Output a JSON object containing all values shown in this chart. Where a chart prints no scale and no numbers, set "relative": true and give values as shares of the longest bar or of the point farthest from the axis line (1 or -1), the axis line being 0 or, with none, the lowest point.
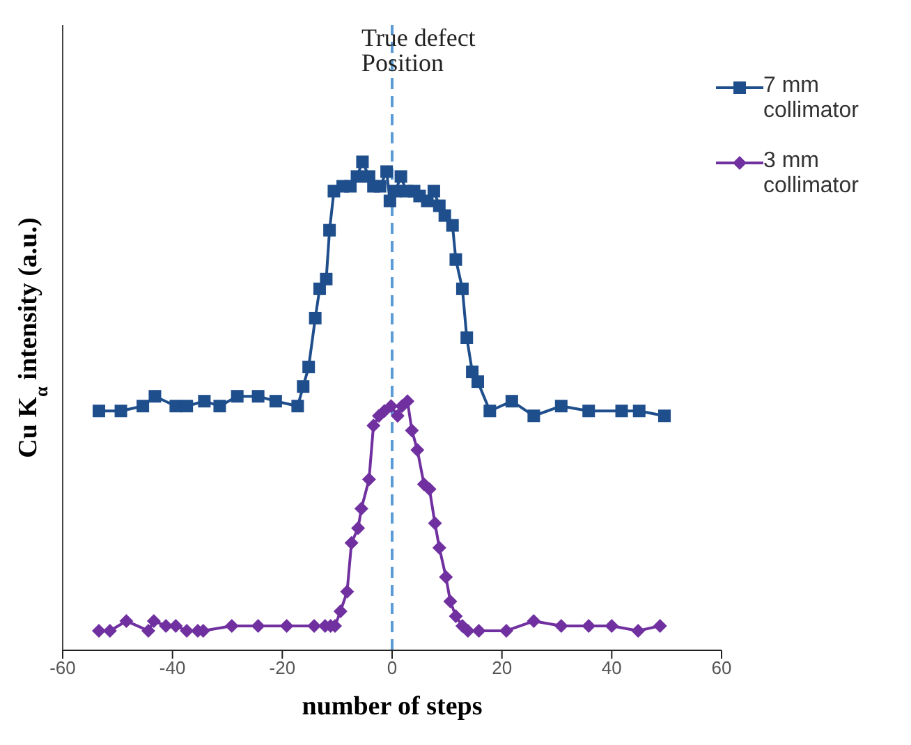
{
  "chart_data": {
    "type": "line",
    "relative": true,
    "xlabel": "number of steps",
    "ylabel": "Cu K$_{α}$ intensity (a.u.)",
    "xlim": [
      -60,
      60
    ],
    "xticks": [
      -60,
      -40,
      -20,
      0,
      20,
      40,
      60
    ],
    "legend": "top right",
    "grid": false,
    "line_style": "solid",
    "ref_lines": [
      {
        "axis": "x",
        "value": 0,
        "label": "True defect Position",
        "color": "#5b9bd5",
        "line_style": "dashed"
      }
    ],
    "series": [
      {
        "name": "7 mm collimator",
        "color": "#1f4e8c",
        "marker": "square",
        "x": [
          -53.4,
          -49.4,
          -45.4,
          -43.2,
          -39.4,
          -37.4,
          -34.2,
          -31.4,
          -28.2,
          -24.4,
          -21.2,
          -17.2,
          -16.2,
          -15.2,
          -14,
          -13.2,
          -12,
          -11.4,
          -10.6,
          -9,
          -7.6,
          -6.4,
          -5.4,
          -4.2,
          -3.4,
          -2.2,
          -1,
          -0.4,
          0.6,
          1.6,
          2.6,
          4,
          5,
          6.4,
          7.6,
          8.6,
          9.6,
          11,
          11.6,
          12.8,
          13.6,
          14.6,
          15.6,
          17.8,
          21.8,
          25.8,
          30.8,
          35.8,
          41.8,
          45,
          49.6
        ],
        "values": [
          0.49,
          0.49,
          0.5,
          0.52,
          0.5,
          0.5,
          0.51,
          0.5,
          0.52,
          0.52,
          0.51,
          0.5,
          0.54,
          0.58,
          0.68,
          0.74,
          0.76,
          0.86,
          0.94,
          0.95,
          0.95,
          0.97,
          1,
          0.97,
          0.95,
          0.95,
          0.98,
          0.92,
          0.94,
          0.97,
          0.94,
          0.94,
          0.93,
          0.92,
          0.94,
          0.91,
          0.89,
          0.87,
          0.8,
          0.74,
          0.64,
          0.57,
          0.55,
          0.49,
          0.51,
          0.48,
          0.5,
          0.49,
          0.49,
          0.49,
          0.48
        ]
      },
      {
        "name": "3 mm collimator",
        "color": "#7030a0",
        "marker": "diamond",
        "x": [
          -53.4,
          -51.4,
          -48.4,
          -44.4,
          -43.4,
          -41.2,
          -39.4,
          -37.4,
          -35.4,
          -34.4,
          -29.2,
          -24.4,
          -19.2,
          -14.2,
          -12.2,
          -11.2,
          -10.4,
          -9.4,
          -8.2,
          -7.4,
          -6.2,
          -5.6,
          -4.2,
          -3.4,
          -2.4,
          -1.4,
          -0.2,
          1,
          1.8,
          2.8,
          3.6,
          4.6,
          5.8,
          6.8,
          7.8,
          8.6,
          9.8,
          10.6,
          11.6,
          12.8,
          13.8,
          15.8,
          20.8,
          25.8,
          30.8,
          35.8,
          40,
          44.8,
          48.8
        ],
        "values": [
          0.04,
          0.04,
          0.06,
          0.04,
          0.06,
          0.05,
          0.05,
          0.04,
          0.04,
          0.04,
          0.05,
          0.05,
          0.05,
          0.05,
          0.05,
          0.05,
          0.05,
          0.08,
          0.12,
          0.22,
          0.25,
          0.29,
          0.35,
          0.46,
          0.48,
          0.49,
          0.5,
          0.48,
          0.5,
          0.51,
          0.45,
          0.41,
          0.34,
          0.33,
          0.26,
          0.21,
          0.15,
          0.1,
          0.07,
          0.05,
          0.04,
          0.04,
          0.04,
          0.06,
          0.05,
          0.05,
          0.05,
          0.04,
          0.05
        ]
      }
    ]
  }
}
